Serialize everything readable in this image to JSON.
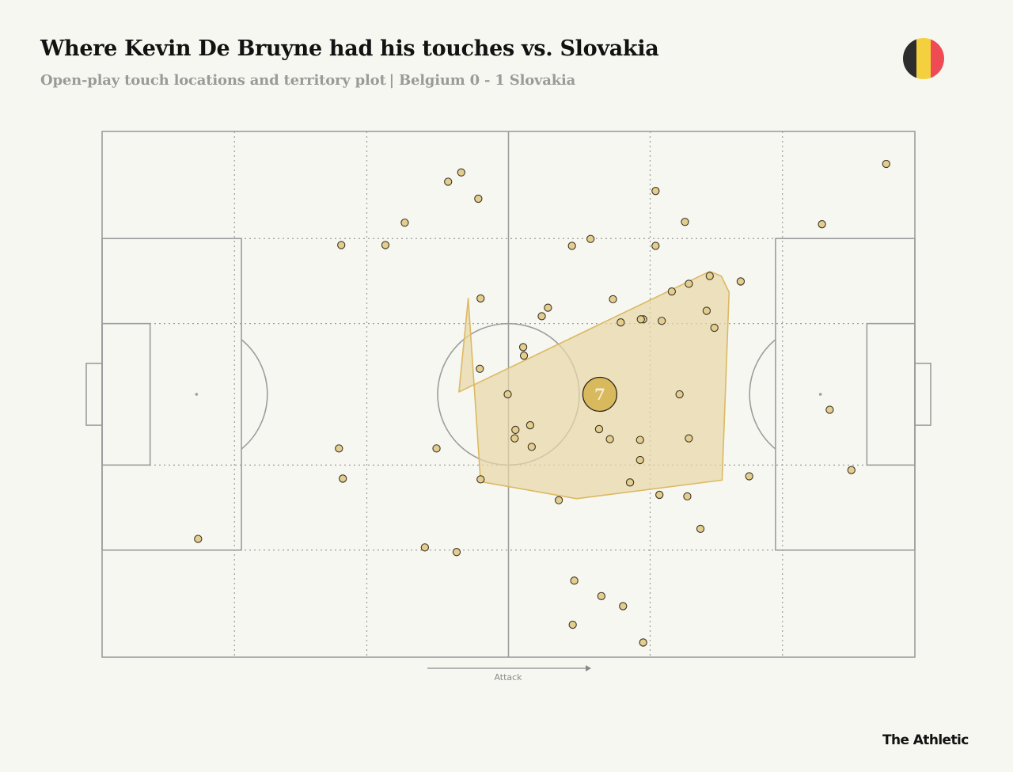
{
  "header": {
    "title": "Where Kevin De Bruyne had his touches vs. Slovakia",
    "subtitle_part1": "Open-play touch locations and territory plot",
    "subtitle_separator": "|",
    "subtitle_part2": "Belgium 0 - 1 Slovakia"
  },
  "flag": {
    "icon": "belgium-flag-icon",
    "colors": [
      "#2d2d2d",
      "#f4d03f",
      "#ef4b54"
    ]
  },
  "brand": {
    "label": "The Athletic"
  },
  "colors": {
    "touch_fill": "#e3cd8f",
    "touch_stroke": "#3c3526",
    "territory_fill": "#e8d7a8",
    "territory_stroke": "#dcb962",
    "avg_marker_fill": "#d9b95e",
    "pitch_line": "#9c9c9c",
    "zone_line": "#9c9c9c"
  },
  "chart_data": {
    "type": "scatter",
    "title": "Where Kevin De Bruyne had his touches vs. Slovakia",
    "pitch": {
      "length": 105,
      "width": 68,
      "attack_direction": "left-to-right"
    },
    "direction_label": "Attack",
    "average_position": {
      "x": 64.3,
      "y": 34.0,
      "label": "7"
    },
    "territory_polygon": [
      [
        47.3,
        46.4
      ],
      [
        48.9,
        22.7
      ],
      [
        61.3,
        20.5
      ],
      [
        80.1,
        22.9
      ],
      [
        81.0,
        47.2
      ],
      [
        80.0,
        49.3
      ],
      [
        78.5,
        49.9
      ],
      [
        46.1,
        34.3
      ]
    ],
    "touches": [
      {
        "x": 44.7,
        "y": 61.5
      },
      {
        "x": 46.4,
        "y": 62.7
      },
      {
        "x": 48.6,
        "y": 59.3
      },
      {
        "x": 39.1,
        "y": 56.2
      },
      {
        "x": 30.9,
        "y": 53.3
      },
      {
        "x": 36.6,
        "y": 53.3
      },
      {
        "x": 101.3,
        "y": 63.8
      },
      {
        "x": 93.0,
        "y": 56.0
      },
      {
        "x": 71.5,
        "y": 60.3
      },
      {
        "x": 75.3,
        "y": 56.3
      },
      {
        "x": 63.1,
        "y": 54.1
      },
      {
        "x": 60.7,
        "y": 53.2
      },
      {
        "x": 71.5,
        "y": 53.2
      },
      {
        "x": 78.5,
        "y": 49.3
      },
      {
        "x": 82.5,
        "y": 48.6
      },
      {
        "x": 75.8,
        "y": 48.3
      },
      {
        "x": 73.6,
        "y": 47.3
      },
      {
        "x": 48.9,
        "y": 46.4
      },
      {
        "x": 66.0,
        "y": 46.3
      },
      {
        "x": 57.6,
        "y": 45.2
      },
      {
        "x": 78.1,
        "y": 44.8
      },
      {
        "x": 79.1,
        "y": 42.6
      },
      {
        "x": 56.8,
        "y": 44.1
      },
      {
        "x": 67.0,
        "y": 43.3
      },
      {
        "x": 69.9,
        "y": 43.7
      },
      {
        "x": 69.6,
        "y": 43.7
      },
      {
        "x": 72.3,
        "y": 43.5
      },
      {
        "x": 54.4,
        "y": 40.1
      },
      {
        "x": 54.5,
        "y": 39.0
      },
      {
        "x": 48.8,
        "y": 37.3
      },
      {
        "x": 52.4,
        "y": 34.0
      },
      {
        "x": 74.6,
        "y": 34.0
      },
      {
        "x": 94.0,
        "y": 32.0
      },
      {
        "x": 43.2,
        "y": 27.0
      },
      {
        "x": 30.6,
        "y": 27.0
      },
      {
        "x": 31.1,
        "y": 23.1
      },
      {
        "x": 53.4,
        "y": 29.4
      },
      {
        "x": 55.3,
        "y": 30.0
      },
      {
        "x": 53.3,
        "y": 28.3
      },
      {
        "x": 64.2,
        "y": 29.5
      },
      {
        "x": 65.6,
        "y": 28.2
      },
      {
        "x": 69.5,
        "y": 28.1
      },
      {
        "x": 75.8,
        "y": 28.3
      },
      {
        "x": 55.5,
        "y": 27.2
      },
      {
        "x": 69.5,
        "y": 25.5
      },
      {
        "x": 48.9,
        "y": 23.0
      },
      {
        "x": 83.6,
        "y": 23.4
      },
      {
        "x": 96.8,
        "y": 24.2
      },
      {
        "x": 68.2,
        "y": 22.6
      },
      {
        "x": 59.0,
        "y": 20.3
      },
      {
        "x": 72.0,
        "y": 21.0
      },
      {
        "x": 75.6,
        "y": 20.8
      },
      {
        "x": 77.3,
        "y": 16.6
      },
      {
        "x": 12.4,
        "y": 15.3
      },
      {
        "x": 41.7,
        "y": 14.2
      },
      {
        "x": 45.8,
        "y": 13.6
      },
      {
        "x": 61.0,
        "y": 9.9
      },
      {
        "x": 64.5,
        "y": 7.9
      },
      {
        "x": 67.3,
        "y": 6.6
      },
      {
        "x": 60.8,
        "y": 4.2
      },
      {
        "x": 69.9,
        "y": 1.9
      }
    ]
  }
}
